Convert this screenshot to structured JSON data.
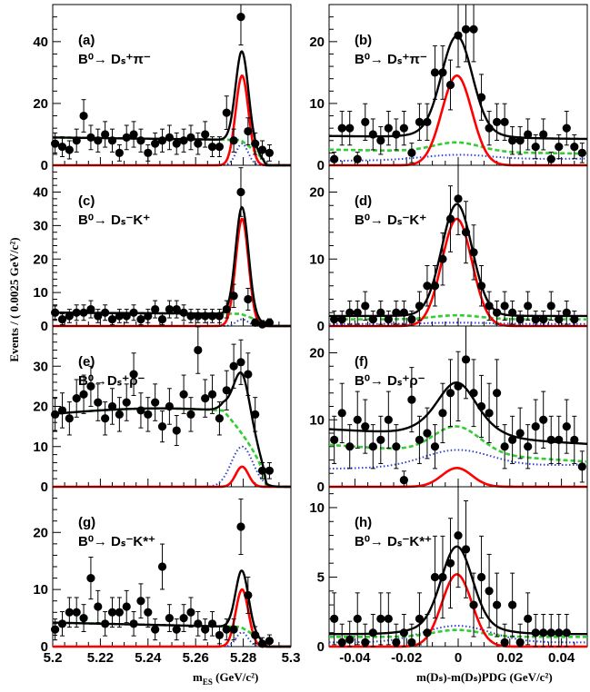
{
  "axis_titles": {
    "y": "Events / ( 0.0025 GeV/c²)",
    "x_left": "mₑₛ (GeV/c²)",
    "x_left_main": "m",
    "x_left_sub": "ES",
    "x_left_unit": " (GeV/c²)",
    "x_right": "m(Dₛ)-m(Dₛ)PDG (GeV/c²)"
  },
  "colors": {
    "data": "#000000",
    "total_fit": "#000000",
    "signal": "#ff0000",
    "background_green": "#33cc33",
    "background_blue": "#3344cc"
  },
  "chart_data": [
    {
      "id": "a",
      "type": "scatter",
      "panel_label": "(a)",
      "decay_main": "B⁰→ Dₛ⁺π⁻",
      "xlim": [
        5.2,
        5.3
      ],
      "ylim": [
        0,
        52
      ],
      "yticks": [
        0,
        20,
        40
      ],
      "xticks": [
        5.2,
        5.22,
        5.24,
        5.26,
        5.28,
        5.3
      ],
      "points": [
        [
          5.201,
          7
        ],
        [
          5.204,
          6
        ],
        [
          5.207,
          5
        ],
        [
          5.21,
          8
        ],
        [
          5.213,
          16
        ],
        [
          5.216,
          9
        ],
        [
          5.219,
          8
        ],
        [
          5.222,
          10
        ],
        [
          5.225,
          8
        ],
        [
          5.228,
          4
        ],
        [
          5.231,
          9
        ],
        [
          5.234,
          10
        ],
        [
          5.237,
          8
        ],
        [
          5.24,
          4
        ],
        [
          5.243,
          7
        ],
        [
          5.246,
          8
        ],
        [
          5.249,
          9
        ],
        [
          5.252,
          7
        ],
        [
          5.255,
          8
        ],
        [
          5.258,
          9
        ],
        [
          5.261,
          7
        ],
        [
          5.264,
          10
        ],
        [
          5.267,
          6
        ],
        [
          5.27,
          6
        ],
        [
          5.273,
          17
        ],
        [
          5.276,
          8
        ],
        [
          5.279,
          48
        ],
        [
          5.282,
          11
        ],
        [
          5.285,
          7
        ],
        [
          5.288,
          5
        ],
        [
          5.291,
          4
        ]
      ],
      "err": 4,
      "signal": {
        "peak": 5.2795,
        "amp": 29,
        "sigma": 0.0027
      },
      "green": {
        "level": 9,
        "end": 5.2895,
        "slope": -0.1
      },
      "blue": {
        "amp": 7,
        "sigma": 0.0025
      }
    },
    {
      "id": "b",
      "type": "scatter",
      "panel_label": "(b)",
      "decay_main": "B⁰→ Dₛ⁺π⁻",
      "xlim": [
        -0.05,
        0.05
      ],
      "ylim": [
        0,
        26
      ],
      "yticks": [
        0,
        10,
        20
      ],
      "xticks": [
        -0.04,
        -0.02,
        0,
        0.02,
        0.04
      ],
      "points": [
        [
          -0.048,
          1
        ],
        [
          -0.045,
          6
        ],
        [
          -0.042,
          6
        ],
        [
          -0.039,
          1
        ],
        [
          -0.036,
          7
        ],
        [
          -0.033,
          5
        ],
        [
          -0.03,
          4
        ],
        [
          -0.027,
          6
        ],
        [
          -0.024,
          5
        ],
        [
          -0.021,
          6
        ],
        [
          -0.018,
          2
        ],
        [
          -0.015,
          7
        ],
        [
          -0.012,
          7
        ],
        [
          -0.009,
          15
        ],
        [
          -0.006,
          15
        ],
        [
          -0.003,
          13
        ],
        [
          0.0,
          21
        ],
        [
          0.003,
          22
        ],
        [
          0.006,
          22
        ],
        [
          0.009,
          11
        ],
        [
          0.012,
          6
        ],
        [
          0.015,
          7
        ],
        [
          0.018,
          7
        ],
        [
          0.021,
          4
        ],
        [
          0.024,
          4
        ],
        [
          0.027,
          5
        ],
        [
          0.03,
          3
        ],
        [
          0.033,
          5
        ],
        [
          0.036,
          1
        ],
        [
          0.039,
          3
        ],
        [
          0.042,
          6
        ],
        [
          0.045,
          3
        ],
        [
          0.048,
          2
        ]
      ],
      "err": 3,
      "signal": {
        "peak": -0.0005,
        "amp": 14.5,
        "sigma": 0.0058
      },
      "green": {
        "level": 2.2,
        "gauss_amp": 1.5,
        "slope": -0.3
      },
      "blue": {
        "level": 0.9,
        "gauss_amp": 0.8,
        "slope": 0.4
      },
      "total_base": 4.5
    },
    {
      "id": "c",
      "type": "scatter",
      "panel_label": "(c)",
      "decay_main": "B⁰→ Dₛ⁻K⁺",
      "xlim": [
        5.2,
        5.3
      ],
      "ylim": [
        0,
        48
      ],
      "yticks": [
        0,
        10,
        20,
        30,
        40
      ],
      "xticks": [
        5.2,
        5.22,
        5.24,
        5.26,
        5.28,
        5.3
      ],
      "points": [
        [
          5.201,
          4
        ],
        [
          5.204,
          2
        ],
        [
          5.207,
          3
        ],
        [
          5.21,
          4
        ],
        [
          5.213,
          4
        ],
        [
          5.216,
          5
        ],
        [
          5.219,
          3
        ],
        [
          5.222,
          4
        ],
        [
          5.225,
          2
        ],
        [
          5.228,
          3
        ],
        [
          5.231,
          3
        ],
        [
          5.234,
          4
        ],
        [
          5.237,
          2
        ],
        [
          5.24,
          3
        ],
        [
          5.243,
          5
        ],
        [
          5.246,
          2
        ],
        [
          5.249,
          5
        ],
        [
          5.252,
          5
        ],
        [
          5.255,
          4
        ],
        [
          5.258,
          3
        ],
        [
          5.261,
          3
        ],
        [
          5.264,
          3
        ],
        [
          5.267,
          3
        ],
        [
          5.27,
          3
        ],
        [
          5.273,
          5
        ],
        [
          5.276,
          9
        ],
        [
          5.279,
          40
        ],
        [
          5.282,
          8
        ],
        [
          5.285,
          1
        ],
        [
          5.288,
          0.5
        ],
        [
          5.291,
          1
        ]
      ],
      "err": 2.5,
      "signal": {
        "peak": 5.2795,
        "amp": 32,
        "sigma": 0.0027
      },
      "green": {
        "level": 4,
        "end": 5.2895,
        "slope": -0.1
      },
      "blue": {
        "amp": 2,
        "sigma": 0.0025
      }
    },
    {
      "id": "d",
      "type": "scatter",
      "panel_label": "(d)",
      "decay_main": "B⁰→ Dₛ⁻K⁺",
      "xlim": [
        -0.05,
        0.05
      ],
      "ylim": [
        0,
        24
      ],
      "yticks": [
        0,
        10,
        20
      ],
      "xticks": [
        -0.04,
        -0.02,
        0,
        0.02,
        0.04
      ],
      "points": [
        [
          -0.048,
          1
        ],
        [
          -0.045,
          1
        ],
        [
          -0.042,
          2
        ],
        [
          -0.039,
          2
        ],
        [
          -0.036,
          3
        ],
        [
          -0.033,
          1
        ],
        [
          -0.03,
          2
        ],
        [
          -0.027,
          1
        ],
        [
          -0.024,
          2
        ],
        [
          -0.021,
          2
        ],
        [
          -0.018,
          1
        ],
        [
          -0.015,
          3
        ],
        [
          -0.012,
          6
        ],
        [
          -0.009,
          6
        ],
        [
          -0.006,
          10
        ],
        [
          -0.003,
          16
        ],
        [
          0.0,
          19
        ],
        [
          0.003,
          14
        ],
        [
          0.006,
          11
        ],
        [
          0.009,
          6
        ],
        [
          0.012,
          3
        ],
        [
          0.015,
          2
        ],
        [
          0.018,
          3
        ],
        [
          0.021,
          2
        ],
        [
          0.024,
          1
        ],
        [
          0.027,
          3
        ],
        [
          0.03,
          1
        ],
        [
          0.033,
          1
        ],
        [
          0.036,
          3
        ],
        [
          0.039,
          1
        ],
        [
          0.042,
          2
        ],
        [
          0.045,
          1
        ]
      ],
      "err": 2.5,
      "signal": {
        "peak": -0.0005,
        "amp": 16,
        "sigma": 0.0058
      },
      "green": {
        "level": 1.0,
        "gauss_amp": 0.6,
        "slope": 0
      },
      "blue": {
        "level": 0.3,
        "gauss_amp": 0.2,
        "slope": 0
      },
      "total_base": 1.5
    },
    {
      "id": "e",
      "type": "scatter",
      "panel_label": "(e)",
      "decay_main": "B⁰→Dₛ⁺ρ⁻",
      "xlim": [
        5.2,
        5.3
      ],
      "ylim": [
        0,
        40
      ],
      "yticks": [
        0,
        10,
        20,
        30
      ],
      "xticks": [
        5.2,
        5.22,
        5.24,
        5.26,
        5.28,
        5.3
      ],
      "points": [
        [
          5.201,
          18
        ],
        [
          5.204,
          19
        ],
        [
          5.207,
          17
        ],
        [
          5.21,
          22
        ],
        [
          5.213,
          23
        ],
        [
          5.216,
          25
        ],
        [
          5.219,
          21
        ],
        [
          5.222,
          17
        ],
        [
          5.225,
          20
        ],
        [
          5.228,
          18
        ],
        [
          5.231,
          21
        ],
        [
          5.234,
          28
        ],
        [
          5.237,
          19
        ],
        [
          5.24,
          18
        ],
        [
          5.243,
          21
        ],
        [
          5.246,
          15
        ],
        [
          5.249,
          20
        ],
        [
          5.252,
          14
        ],
        [
          5.255,
          23
        ],
        [
          5.258,
          18
        ],
        [
          5.261,
          34
        ],
        [
          5.264,
          22
        ],
        [
          5.267,
          23
        ],
        [
          5.27,
          17
        ],
        [
          5.273,
          24
        ],
        [
          5.276,
          30
        ],
        [
          5.279,
          31
        ],
        [
          5.282,
          28
        ],
        [
          5.285,
          18
        ],
        [
          5.288,
          4
        ],
        [
          5.291,
          4
        ]
      ],
      "err": 4.5,
      "signal": {
        "peak": 5.2795,
        "amp": 5,
        "sigma": 0.0027
      },
      "green_argus": {
        "level": 19.5,
        "end": 5.2895
      },
      "blue": {
        "amp": 10,
        "sigma": 0.0045
      }
    },
    {
      "id": "f",
      "type": "scatter",
      "panel_label": "(f)",
      "decay_main": "B⁰→ Dₛ⁺ρ⁻",
      "xlim": [
        -0.05,
        0.05
      ],
      "ylim": [
        0,
        24
      ],
      "yticks": [
        0,
        10,
        20
      ],
      "xticks": [
        -0.04,
        -0.02,
        0,
        0.02,
        0.04
      ],
      "points": [
        [
          -0.048,
          7
        ],
        [
          -0.045,
          11
        ],
        [
          -0.042,
          6
        ],
        [
          -0.039,
          10
        ],
        [
          -0.036,
          9
        ],
        [
          -0.033,
          6
        ],
        [
          -0.03,
          7
        ],
        [
          -0.027,
          10
        ],
        [
          -0.024,
          6
        ],
        [
          -0.021,
          1
        ],
        [
          -0.018,
          13
        ],
        [
          -0.015,
          7
        ],
        [
          -0.012,
          8
        ],
        [
          -0.009,
          6
        ],
        [
          -0.006,
          11
        ],
        [
          -0.003,
          14
        ],
        [
          0.0,
          15
        ],
        [
          0.003,
          19
        ],
        [
          0.006,
          14
        ],
        [
          0.009,
          12
        ],
        [
          0.012,
          11
        ],
        [
          0.015,
          14
        ],
        [
          0.018,
          6
        ],
        [
          0.021,
          7
        ],
        [
          0.024,
          8
        ],
        [
          0.027,
          6
        ],
        [
          0.03,
          9
        ],
        [
          0.033,
          10
        ],
        [
          0.036,
          7
        ],
        [
          0.039,
          7
        ],
        [
          0.042,
          9
        ],
        [
          0.045,
          7
        ],
        [
          0.048,
          3
        ]
      ],
      "err": 4,
      "signal": {
        "peak": -0.0005,
        "amp": 2.8,
        "sigma": 0.0058
      },
      "green": {
        "level": 5.0,
        "gauss_amp": 4.0,
        "slope": -0.5
      },
      "blue": {
        "level": 3.0,
        "gauss_amp": 2.5,
        "slope": 0.2
      },
      "total_base": 7.5
    },
    {
      "id": "g",
      "type": "scatter",
      "panel_label": "(g)",
      "decay_main": "B⁰→ Dₛ⁻K*⁺",
      "xlim": [
        5.2,
        5.3
      ],
      "ylim": [
        0,
        28
      ],
      "yticks": [
        0,
        10,
        20
      ],
      "xticks": [
        5.2,
        5.22,
        5.24,
        5.26,
        5.28,
        5.3
      ],
      "points": [
        [
          5.201,
          3
        ],
        [
          5.204,
          4
        ],
        [
          5.207,
          6
        ],
        [
          5.21,
          6
        ],
        [
          5.213,
          5
        ],
        [
          5.216,
          12
        ],
        [
          5.219,
          7
        ],
        [
          5.222,
          4
        ],
        [
          5.225,
          6
        ],
        [
          5.228,
          6
        ],
        [
          5.231,
          7
        ],
        [
          5.234,
          4
        ],
        [
          5.237,
          8
        ],
        [
          5.24,
          6
        ],
        [
          5.243,
          3
        ],
        [
          5.246,
          14
        ],
        [
          5.249,
          5
        ],
        [
          5.252,
          3
        ],
        [
          5.255,
          5
        ],
        [
          5.258,
          6
        ],
        [
          5.261,
          4
        ],
        [
          5.264,
          3
        ],
        [
          5.267,
          4
        ],
        [
          5.27,
          2
        ],
        [
          5.273,
          3
        ],
        [
          5.276,
          3
        ],
        [
          5.279,
          21
        ],
        [
          5.282,
          9
        ],
        [
          5.285,
          2
        ],
        [
          5.288,
          0.5
        ],
        [
          5.291,
          1
        ]
      ],
      "err": 2.5,
      "signal": {
        "peak": 5.2795,
        "amp": 10,
        "sigma": 0.0027
      },
      "green": {
        "level": 4.2,
        "end": 5.2895,
        "slope": -0.2
      },
      "blue": {
        "amp": 2.5,
        "sigma": 0.0025
      }
    },
    {
      "id": "h",
      "type": "scatter",
      "panel_label": "(h)",
      "decay_main": "B⁰→ Dₛ⁻K*⁺",
      "xlim": [
        -0.05,
        0.05
      ],
      "ylim": [
        0,
        11.5
      ],
      "yticks": [
        0,
        5,
        10
      ],
      "xticks": [
        -0.04,
        -0.02,
        0,
        0.02,
        0.04
      ],
      "points": [
        [
          -0.048,
          2
        ],
        [
          -0.045,
          0.3
        ],
        [
          -0.042,
          0.5
        ],
        [
          -0.039,
          2
        ],
        [
          -0.036,
          0.3
        ],
        [
          -0.033,
          1
        ],
        [
          -0.03,
          2
        ],
        [
          -0.027,
          2
        ],
        [
          -0.024,
          0.3
        ],
        [
          -0.021,
          1
        ],
        [
          -0.018,
          0.3
        ],
        [
          -0.015,
          2
        ],
        [
          -0.012,
          1
        ],
        [
          -0.009,
          5
        ],
        [
          -0.006,
          5
        ],
        [
          -0.003,
          6
        ],
        [
          0.0,
          8
        ],
        [
          0.003,
          7
        ],
        [
          0.006,
          3
        ],
        [
          0.009,
          5
        ],
        [
          0.012,
          4
        ],
        [
          0.015,
          3
        ],
        [
          0.018,
          0.3
        ],
        [
          0.021,
          3
        ],
        [
          0.024,
          0.3
        ],
        [
          0.027,
          2
        ],
        [
          0.03,
          1
        ],
        [
          0.033,
          1
        ],
        [
          0.036,
          1
        ],
        [
          0.039,
          1
        ],
        [
          0.042,
          1
        ]
      ],
      "err": 2,
      "signal": {
        "peak": -0.0005,
        "amp": 5.2,
        "sigma": 0.0058
      },
      "green": {
        "level": 0.7,
        "gauss_amp": 0.5,
        "slope": 0
      },
      "blue": {
        "level": 0.3,
        "gauss_amp": 1.2,
        "slope": 0
      },
      "total_base": 0.9
    }
  ]
}
